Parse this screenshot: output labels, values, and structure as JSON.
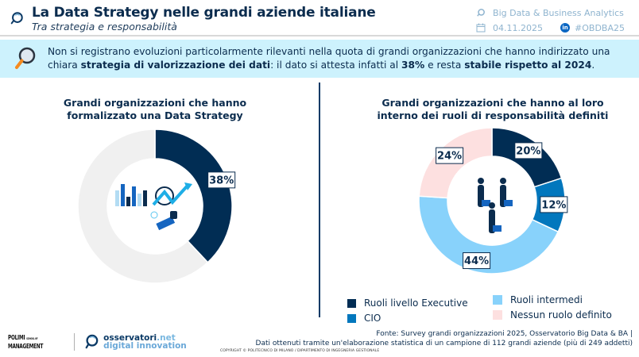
{
  "header": {
    "title": "La Data Strategy nelle grandi aziende italiane",
    "subtitle": "Tra strategia e responsabilità",
    "observatory": "Big Data & Business Analytics",
    "date": "04.11.2025",
    "hashtag": "#OBDBA25",
    "linkedin_badge": "in"
  },
  "banner": {
    "text_1": "Non si registrano evoluzioni particolarmente rilevanti nella quota di grandi organizzazioni che hanno indirizzato una chiara ",
    "bold_1": "strategia di valorizzazione dei dati",
    "text_2": ": il dato si attesta infatti al ",
    "bold_2": "38%",
    "text_3": " e resta ",
    "bold_3": "stabile rispetto al 2024",
    "text_4": "."
  },
  "chart_data": [
    {
      "type": "pie",
      "variant": "donut",
      "title": "Grandi organizzazioni che hanno formalizzato una Data Strategy",
      "slices": [
        {
          "name": "Data Strategy formalizzata",
          "value": 38,
          "label": "38%",
          "color": "#012d54"
        },
        {
          "name": "Altro",
          "value": 62,
          "label": "",
          "color": "#f0f0f0"
        }
      ]
    },
    {
      "type": "pie",
      "variant": "donut",
      "title": "Grandi organizzazioni che hanno al loro interno dei ruoli di responsabilità definiti",
      "slices": [
        {
          "name": "Ruoli livello Executive",
          "value": 20,
          "label": "20%",
          "color": "#012d54"
        },
        {
          "name": "CIO",
          "value": 12,
          "label": "12%",
          "color": "#0277bd"
        },
        {
          "name": "Ruoli intermedi",
          "value": 44,
          "label": "44%",
          "color": "#88d2fb"
        },
        {
          "name": "Nessun ruolo definito",
          "value": 24,
          "label": "24%",
          "color": "#fde0e0"
        }
      ],
      "legend": [
        "Ruoli livello Executive",
        "CIO",
        "Ruoli intermedi",
        "Nessun ruolo definito"
      ],
      "legend_position": "bottom"
    }
  ],
  "footer": {
    "polimi_line1": "POLIMI",
    "polimi_small": "SCHOOL OF",
    "polimi_line2": "MANAGEMENT",
    "oss_main": "osservatori",
    "oss_tld": ".net",
    "oss_sub": "digital innovation",
    "source_line1": "Fonte: Survey grandi organizzazioni 2025, Osservatorio Big Data & BA |",
    "source_line2": "Dati ottenuti tramite un'elaborazione statistica di un campione di 112 grandi aziende (più di 249 addetti)",
    "copyright": "COPYRIGHT © POLITECNICO DI MILANO / DIPARTIMENTO DI INGEGNERIA GESTIONALE"
  }
}
